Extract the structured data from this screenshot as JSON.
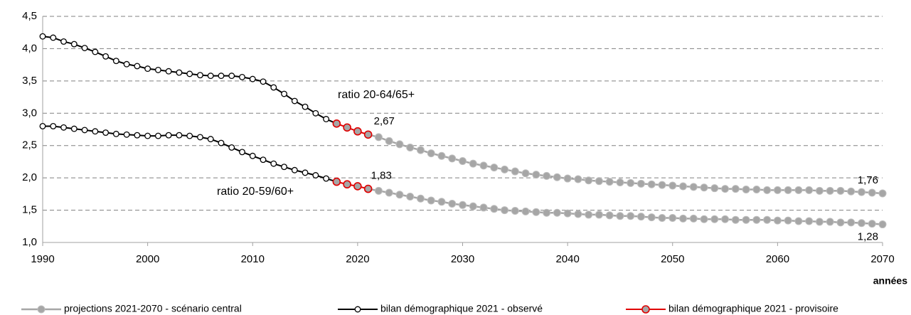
{
  "chart_data": {
    "type": "line",
    "xlabel": "années",
    "xlim": [
      1990,
      2070
    ],
    "xticks": [
      1990,
      2000,
      2010,
      2020,
      2030,
      2040,
      2050,
      2060,
      2070
    ],
    "ylim": [
      1,
      4.5
    ],
    "yticks": [
      {
        "value": 1,
        "label": "1,0"
      },
      {
        "value": 1.5,
        "label": "1,5"
      },
      {
        "value": 2,
        "label": "2,0"
      },
      {
        "value": 2.5,
        "label": "2,5"
      },
      {
        "value": 3,
        "label": "3,0"
      },
      {
        "value": 3.5,
        "label": "3,5"
      },
      {
        "value": 4,
        "label": "4,0"
      },
      {
        "value": 4.5,
        "label": "4,5"
      }
    ],
    "grid": true,
    "line_labels": [
      "ratio 20-64/65+",
      "ratio 20-59/60+"
    ],
    "series": [
      {
        "name": "projections 2021-2070 - scénario central",
        "color": "#a6a6a6",
        "marker_fill": "#a6a6a6",
        "x": [
          2021,
          2022,
          2023,
          2024,
          2025,
          2026,
          2027,
          2028,
          2029,
          2030,
          2031,
          2032,
          2033,
          2034,
          2035,
          2036,
          2037,
          2038,
          2039,
          2040,
          2041,
          2042,
          2043,
          2044,
          2045,
          2046,
          2047,
          2048,
          2049,
          2050,
          2051,
          2052,
          2053,
          2054,
          2055,
          2056,
          2057,
          2058,
          2059,
          2060,
          2061,
          2062,
          2063,
          2064,
          2065,
          2066,
          2067,
          2068,
          2069,
          2070
        ],
        "lines": [
          {
            "values": [
              2.67,
              2.63,
              2.57,
              2.52,
              2.47,
              2.43,
              2.38,
              2.34,
              2.3,
              2.26,
              2.22,
              2.19,
              2.16,
              2.13,
              2.1,
              2.07,
              2.05,
              2.03,
              2.01,
              1.99,
              1.98,
              1.96,
              1.95,
              1.94,
              1.93,
              1.92,
              1.91,
              1.9,
              1.89,
              1.88,
              1.87,
              1.86,
              1.85,
              1.84,
              1.83,
              1.83,
              1.82,
              1.82,
              1.81,
              1.81,
              1.81,
              1.81,
              1.81,
              1.8,
              1.8,
              1.8,
              1.79,
              1.78,
              1.77,
              1.76
            ],
            "value_labels": [
              "2,67",
              null,
              null,
              null,
              null,
              null,
              null,
              null,
              null,
              null,
              null,
              null,
              null,
              null,
              null,
              null,
              null,
              null,
              null,
              null,
              null,
              null,
              null,
              null,
              null,
              null,
              null,
              null,
              null,
              null,
              null,
              null,
              null,
              null,
              null,
              null,
              null,
              null,
              null,
              null,
              null,
              null,
              null,
              null,
              null,
              null,
              null,
              null,
              null,
              "1,76"
            ]
          },
          {
            "values": [
              1.83,
              1.8,
              1.77,
              1.74,
              1.71,
              1.68,
              1.65,
              1.63,
              1.6,
              1.58,
              1.56,
              1.54,
              1.52,
              1.5,
              1.49,
              1.48,
              1.47,
              1.46,
              1.46,
              1.45,
              1.44,
              1.43,
              1.43,
              1.42,
              1.41,
              1.41,
              1.4,
              1.39,
              1.38,
              1.38,
              1.37,
              1.37,
              1.36,
              1.36,
              1.36,
              1.35,
              1.35,
              1.35,
              1.35,
              1.34,
              1.34,
              1.33,
              1.33,
              1.32,
              1.32,
              1.31,
              1.31,
              1.3,
              1.29,
              1.28
            ],
            "value_labels": [
              "1,83",
              null,
              null,
              null,
              null,
              null,
              null,
              null,
              null,
              null,
              null,
              null,
              null,
              null,
              null,
              null,
              null,
              null,
              null,
              null,
              null,
              null,
              null,
              null,
              null,
              null,
              null,
              null,
              null,
              null,
              null,
              null,
              null,
              null,
              null,
              null,
              null,
              null,
              null,
              null,
              null,
              null,
              null,
              null,
              null,
              null,
              null,
              null,
              null,
              "1,28"
            ]
          }
        ]
      },
      {
        "name": "bilan démographique 2021 - observé",
        "color": "#000000",
        "marker_fill": "#ffffff",
        "x": [
          1990,
          1991,
          1992,
          1993,
          1994,
          1995,
          1996,
          1997,
          1998,
          1999,
          2000,
          2001,
          2002,
          2003,
          2004,
          2005,
          2006,
          2007,
          2008,
          2009,
          2010,
          2011,
          2012,
          2013,
          2014,
          2015,
          2016,
          2017,
          2018
        ],
        "lines": [
          {
            "values": [
              4.19,
              4.17,
              4.11,
              4.07,
              4.01,
              3.95,
              3.88,
              3.81,
              3.76,
              3.73,
              3.69,
              3.67,
              3.65,
              3.63,
              3.61,
              3.59,
              3.58,
              3.58,
              3.58,
              3.56,
              3.53,
              3.49,
              3.4,
              3.3,
              3.19,
              3.1,
              3.0,
              2.91,
              2.84
            ]
          },
          {
            "values": [
              2.8,
              2.8,
              2.78,
              2.76,
              2.74,
              2.72,
              2.7,
              2.68,
              2.67,
              2.66,
              2.65,
              2.65,
              2.66,
              2.66,
              2.65,
              2.63,
              2.6,
              2.54,
              2.47,
              2.4,
              2.34,
              2.28,
              2.22,
              2.17,
              2.12,
              2.08,
              2.04,
              1.99,
              1.94
            ]
          }
        ]
      },
      {
        "name": "bilan démographique 2021 - provisoire",
        "color": "#e00000",
        "marker_fill": "#a6a6a6",
        "x": [
          2018,
          2019,
          2020,
          2021
        ],
        "lines": [
          {
            "values": [
              2.84,
              2.78,
              2.72,
              2.67
            ]
          },
          {
            "values": [
              1.94,
              1.9,
              1.87,
              1.83
            ]
          }
        ]
      }
    ]
  }
}
